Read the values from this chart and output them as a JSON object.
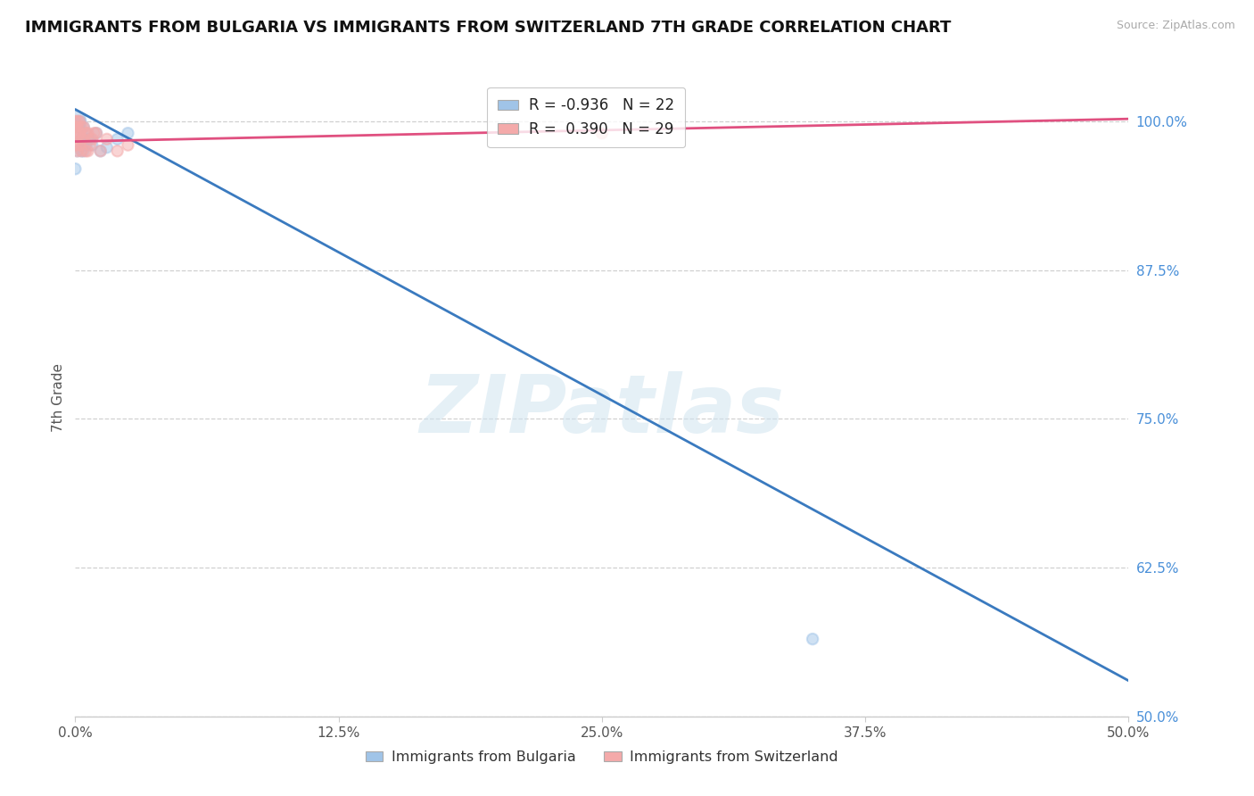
{
  "title": "IMMIGRANTS FROM BULGARIA VS IMMIGRANTS FROM SWITZERLAND 7TH GRADE CORRELATION CHART",
  "source": "Source: ZipAtlas.com",
  "ylabel": "7th Grade",
  "legend_labels": [
    "Immigrants from Bulgaria",
    "Immigrants from Switzerland"
  ],
  "R_bulgaria": -0.936,
  "N_bulgaria": 22,
  "R_switzerland": 0.39,
  "N_switzerland": 29,
  "xlim": [
    0.0,
    0.5
  ],
  "ylim": [
    0.5,
    1.035
  ],
  "xtick_values": [
    0.0,
    0.125,
    0.25,
    0.375,
    0.5
  ],
  "xtick_labels": [
    "0.0%",
    "12.5%",
    "25.0%",
    "37.5%",
    "50.0%"
  ],
  "ytick_values": [
    0.5,
    0.625,
    0.75,
    0.875,
    1.0
  ],
  "ytick_labels": [
    "50.0%",
    "62.5%",
    "75.0%",
    "87.5%",
    "100.0%"
  ],
  "color_bulgaria": "#a0c4e8",
  "color_switzerland": "#f4aaaa",
  "trend_color_bulgaria": "#3a7abf",
  "trend_color_switzerland": "#e05080",
  "watermark": "ZIPatlas",
  "bulgaria_points_x": [
    0.0,
    0.001,
    0.001,
    0.002,
    0.002,
    0.003,
    0.003,
    0.004,
    0.004,
    0.005,
    0.005,
    0.006,
    0.007,
    0.008,
    0.01,
    0.012,
    0.015,
    0.02,
    0.025,
    0.0,
    0.35,
    0.0
  ],
  "bulgaria_points_y": [
    1.0,
    0.99,
    0.975,
    0.995,
    1.0,
    0.985,
    0.975,
    0.995,
    0.975,
    0.99,
    0.98,
    0.985,
    0.985,
    0.98,
    0.99,
    0.975,
    0.978,
    0.985,
    0.99,
    0.96,
    0.565,
    0.998
  ],
  "bulgaria_sizes": [
    300,
    100,
    80,
    80,
    80,
    80,
    80,
    80,
    80,
    80,
    80,
    80,
    80,
    80,
    80,
    80,
    80,
    80,
    80,
    80,
    80,
    80
  ],
  "switzerland_points_x": [
    0.0,
    0.0,
    0.0,
    0.0,
    0.001,
    0.001,
    0.001,
    0.002,
    0.002,
    0.003,
    0.003,
    0.003,
    0.004,
    0.004,
    0.005,
    0.005,
    0.006,
    0.006,
    0.007,
    0.008,
    0.009,
    0.01,
    0.012,
    0.015,
    0.02,
    0.025,
    0.25,
    0.001,
    0.002
  ],
  "switzerland_points_y": [
    1.0,
    0.99,
    0.98,
    0.995,
    0.995,
    0.985,
    0.975,
    0.99,
    0.98,
    0.995,
    0.985,
    0.975,
    0.995,
    0.985,
    0.99,
    0.975,
    0.99,
    0.975,
    0.98,
    0.985,
    0.99,
    0.99,
    0.975,
    0.985,
    0.975,
    0.98,
    0.99,
    1.0,
    1.0
  ],
  "switzerland_sizes": [
    80,
    80,
    80,
    80,
    80,
    80,
    80,
    80,
    80,
    80,
    80,
    80,
    80,
    80,
    80,
    80,
    80,
    80,
    80,
    80,
    80,
    80,
    80,
    80,
    80,
    80,
    80,
    80,
    80
  ],
  "bul_trend_x": [
    0.0,
    0.5
  ],
  "bul_trend_y": [
    1.01,
    0.53
  ],
  "swi_trend_x": [
    0.0,
    0.5
  ],
  "swi_trend_y": [
    0.983,
    1.002
  ],
  "ytick_color": "#4a90d9",
  "xtick_color": "#555555",
  "grid_color": "#d0d0d0",
  "spine_color": "#cccccc"
}
